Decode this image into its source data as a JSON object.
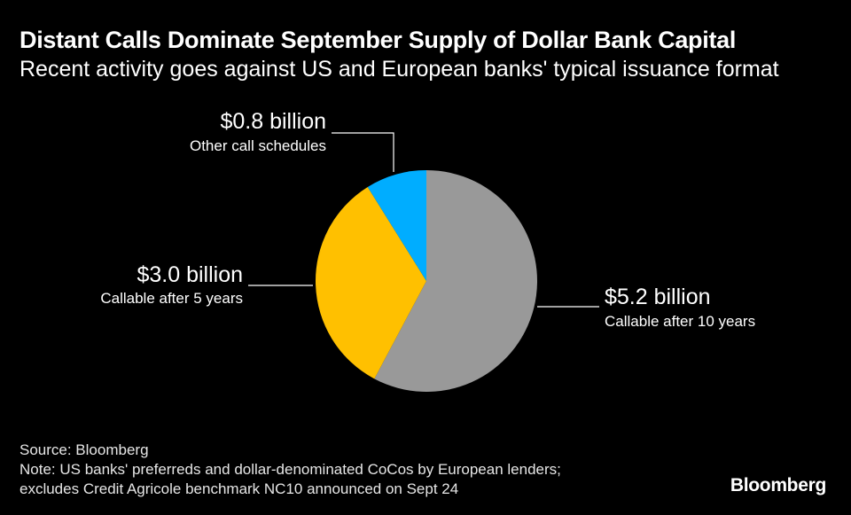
{
  "header": {
    "title": "Distant Calls Dominate September Supply of Dollar Bank Capital",
    "subtitle": "Recent activity goes against US and European banks' typical issuance format"
  },
  "chart_data": {
    "type": "pie",
    "title": "Distant Calls Dominate September Supply of Dollar Bank Capital",
    "subtitle": "Recent activity goes against US and European banks' typical issuance format",
    "slices": [
      {
        "label": "Callable after 10 years",
        "value": 5.2,
        "value_label": "$5.2 billion",
        "color": "#999999"
      },
      {
        "label": "Callable after 5 years",
        "value": 3.0,
        "value_label": "$3.0 billion",
        "color": "#ffc000"
      },
      {
        "label": "Other call schedules",
        "value": 0.8,
        "value_label": "$0.8 billion",
        "color": "#00adff"
      }
    ],
    "unit": "billion USD"
  },
  "footer": {
    "source": "Source: Bloomberg",
    "note_line1": "Note: US banks' preferreds and dollar-denominated CoCos by European lenders;",
    "note_line2": "excludes Credit Agricole benchmark NC10 announced on Sept 24"
  },
  "brand": "Bloomberg"
}
